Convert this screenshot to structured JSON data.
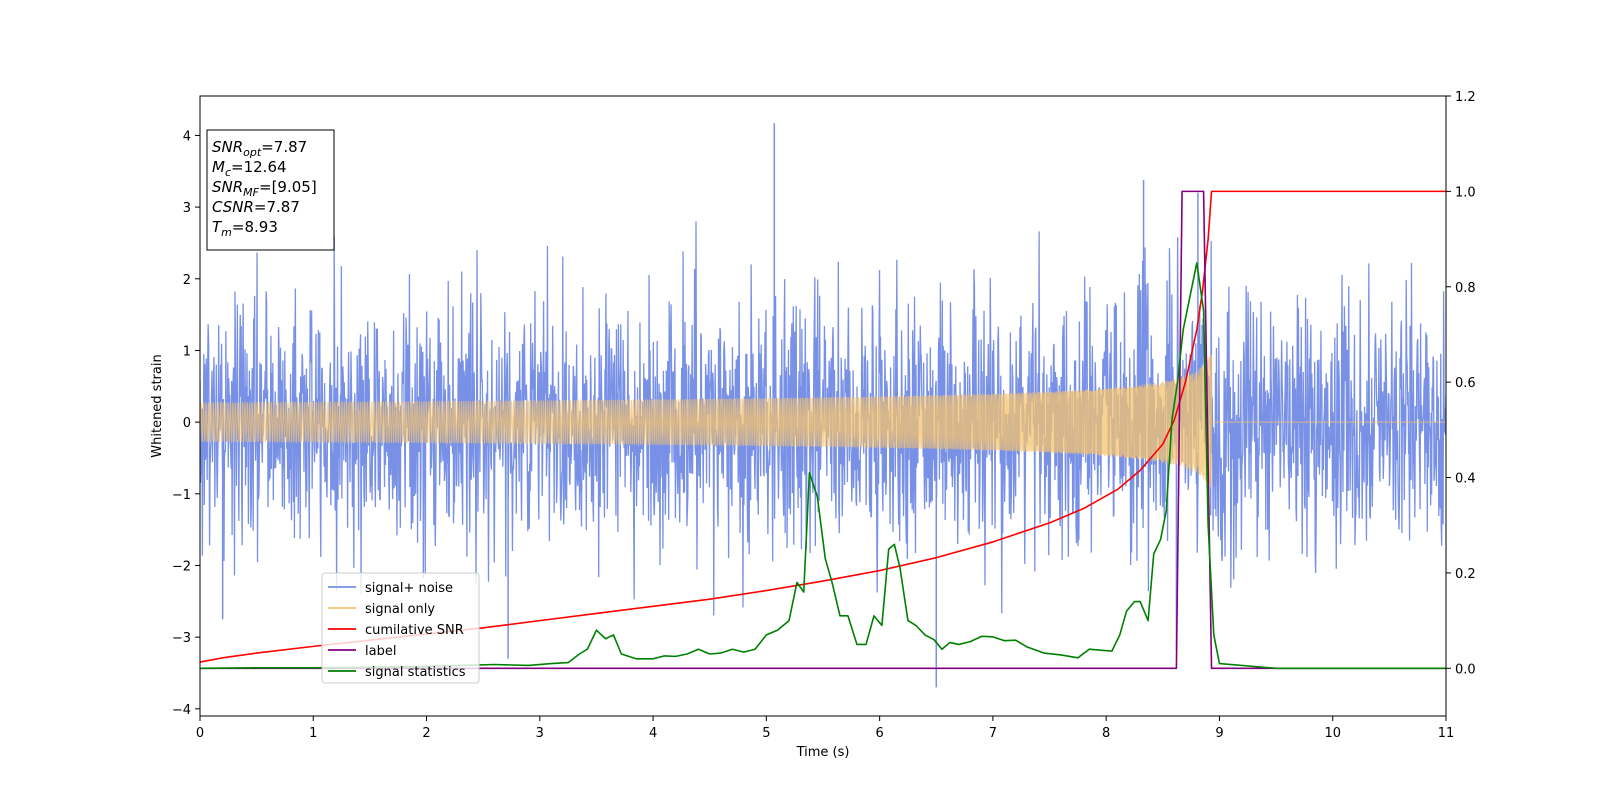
{
  "chart_data": {
    "type": "line",
    "title": "",
    "xlabel": "Time (s)",
    "ylabel": "Whitened strain",
    "y2label": "",
    "xlim": [
      0,
      11
    ],
    "ylim": [
      -4.1,
      4.55
    ],
    "y2lim": [
      -0.1,
      1.2
    ],
    "x_ticks": [
      0,
      1,
      2,
      3,
      4,
      5,
      6,
      7,
      8,
      9,
      10,
      11
    ],
    "y_ticks": [
      -4,
      -3,
      -2,
      -1,
      0,
      1,
      2,
      3,
      4
    ],
    "y_tick_labels": [
      "−4",
      "−3",
      "−2",
      "−1",
      "0",
      "1",
      "2",
      "3",
      "4"
    ],
    "y2_ticks": [
      0.0,
      0.2,
      0.4,
      0.6,
      0.8,
      1.0,
      1.2
    ],
    "y2_tick_labels": [
      "0.0",
      "0.2",
      "0.4",
      "0.6",
      "0.8",
      "1.0",
      "1.2"
    ],
    "grid": false,
    "legend_position": "lower-left",
    "info_box": {
      "position": "upper-left",
      "lines": [
        {
          "base": "SNR",
          "sub": "opt",
          "value": "=7.87"
        },
        {
          "base": "M",
          "sub": "c",
          "value": "=12.64"
        },
        {
          "base": "SNR",
          "sub": "MF",
          "value": "=[9.05]"
        },
        {
          "base": "CSNR",
          "sub": "",
          "value": "=7.87"
        },
        {
          "base": "T",
          "sub": "m",
          "value": "=8.93"
        }
      ]
    },
    "series": [
      {
        "name": "signal+ noise",
        "axis": "left",
        "color": "#7891e6",
        "kind": "noise",
        "sigma": 0.85,
        "signal_added": true,
        "spikes": [
          {
            "x": 5.07,
            "y": 4.17
          },
          {
            "x": 8.33,
            "y": 3.38
          },
          {
            "x": 8.81,
            "y": 3.2
          },
          {
            "x": 6.5,
            "y": -3.7
          },
          {
            "x": 0.2,
            "y": -2.75
          },
          {
            "x": 2.72,
            "y": -3.3
          },
          {
            "x": 8.62,
            "y": -3.18
          }
        ]
      },
      {
        "name": "signal only",
        "axis": "left",
        "color": "#f5c36e",
        "kind": "chirp",
        "merger_time": 8.93,
        "peak_amplitude": 1.0
      },
      {
        "name": "cumilative SNR",
        "axis": "right",
        "color": "#ff0000",
        "x": [
          0,
          0.2,
          0.5,
          1,
          1.5,
          2,
          2.5,
          3,
          3.5,
          4,
          4.5,
          5,
          5.5,
          6,
          6.5,
          7,
          7.5,
          7.8,
          8.1,
          8.3,
          8.5,
          8.6,
          8.7,
          8.8,
          8.85,
          8.9,
          8.93,
          9,
          10,
          11
        ],
        "y": [
          0.013,
          0.022,
          0.032,
          0.046,
          0.059,
          0.072,
          0.085,
          0.1,
          0.115,
          0.13,
          0.145,
          0.163,
          0.183,
          0.205,
          0.232,
          0.265,
          0.305,
          0.335,
          0.375,
          0.415,
          0.47,
          0.52,
          0.6,
          0.71,
          0.79,
          0.9,
          1.0,
          1.0,
          1.0,
          1.0
        ]
      },
      {
        "name": "label",
        "axis": "right",
        "color": "#800080",
        "x": [
          0,
          8.62,
          8.67,
          8.86,
          8.93,
          11
        ],
        "y": [
          0,
          0,
          1.0,
          1.0,
          0,
          0
        ]
      },
      {
        "name": "signal statistics",
        "axis": "right",
        "color": "#008000",
        "x": [
          0,
          0.5,
          1,
          1.5,
          2,
          2.3,
          2.6,
          2.9,
          3.1,
          3.25,
          3.35,
          3.42,
          3.5,
          3.58,
          3.65,
          3.72,
          3.85,
          4.0,
          4.1,
          4.2,
          4.3,
          4.4,
          4.5,
          4.6,
          4.7,
          4.8,
          4.9,
          5.0,
          5.1,
          5.2,
          5.27,
          5.33,
          5.38,
          5.45,
          5.52,
          5.58,
          5.65,
          5.72,
          5.8,
          5.88,
          5.95,
          6.02,
          6.08,
          6.13,
          6.18,
          6.25,
          6.32,
          6.4,
          6.48,
          6.55,
          6.62,
          6.7,
          6.8,
          6.9,
          7.0,
          7.1,
          7.2,
          7.3,
          7.45,
          7.6,
          7.75,
          7.85,
          7.95,
          8.05,
          8.12,
          8.18,
          8.25,
          8.3,
          8.37,
          8.42,
          8.48,
          8.53,
          8.58,
          8.63,
          8.68,
          8.74,
          8.8,
          8.86,
          8.9,
          8.95,
          9.0,
          9.5,
          10,
          11
        ],
        "y": [
          0.0,
          0.001,
          0.001,
          0.002,
          0.004,
          0.006,
          0.008,
          0.006,
          0.01,
          0.012,
          0.03,
          0.04,
          0.08,
          0.062,
          0.07,
          0.03,
          0.02,
          0.02,
          0.026,
          0.025,
          0.03,
          0.04,
          0.03,
          0.032,
          0.04,
          0.034,
          0.04,
          0.07,
          0.08,
          0.1,
          0.18,
          0.16,
          0.41,
          0.36,
          0.23,
          0.18,
          0.11,
          0.11,
          0.05,
          0.05,
          0.11,
          0.09,
          0.25,
          0.26,
          0.21,
          0.1,
          0.09,
          0.07,
          0.06,
          0.04,
          0.054,
          0.05,
          0.056,
          0.067,
          0.066,
          0.058,
          0.059,
          0.045,
          0.032,
          0.028,
          0.022,
          0.04,
          0.038,
          0.036,
          0.07,
          0.12,
          0.14,
          0.14,
          0.1,
          0.24,
          0.27,
          0.33,
          0.52,
          0.6,
          0.71,
          0.78,
          0.85,
          0.75,
          0.3,
          0.07,
          0.01,
          0.0,
          0.0,
          0.0
        ]
      }
    ]
  }
}
